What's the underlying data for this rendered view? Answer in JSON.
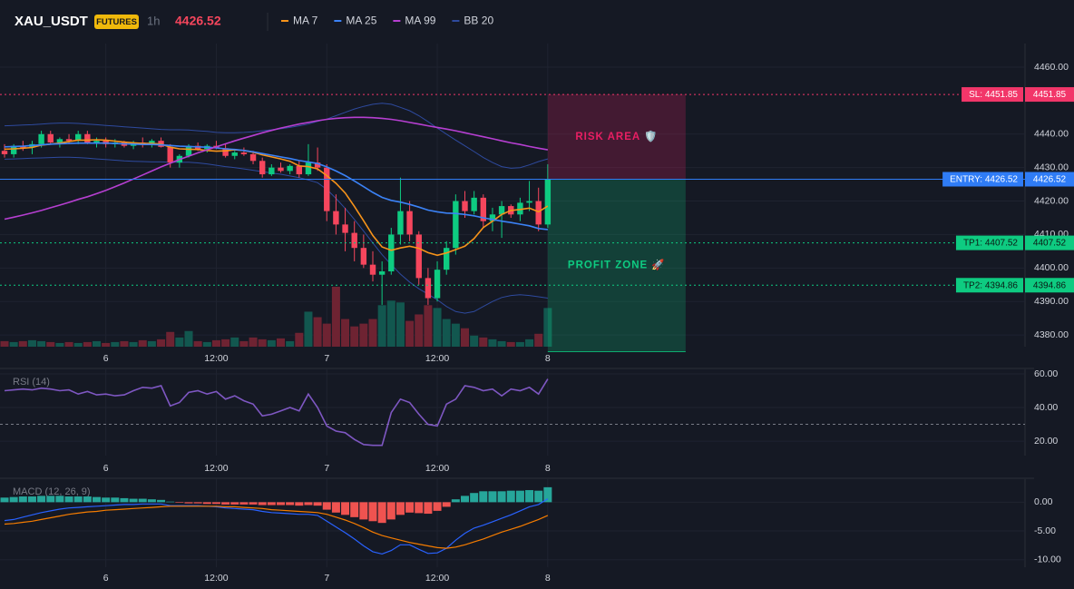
{
  "header": {
    "symbol": "XAU_USDT",
    "badge": "FUTURES",
    "interval": "1h",
    "last_price": 4426.52
  },
  "chart_data": [
    {
      "type": "candlestick",
      "categories": [
        null,
        null,
        null,
        null,
        null,
        null,
        null,
        null,
        null,
        null,
        null,
        "6",
        null,
        null,
        null,
        null,
        null,
        null,
        null,
        null,
        null,
        null,
        null,
        "12:00",
        null,
        null,
        null,
        null,
        null,
        null,
        null,
        null,
        null,
        null,
        null,
        "7",
        null,
        null,
        null,
        null,
        null,
        null,
        null,
        null,
        null,
        null,
        null,
        "12:00",
        null,
        null,
        null,
        null,
        null,
        null,
        null,
        null,
        null,
        null,
        null,
        "8"
      ],
      "open": [
        4435,
        4434,
        4436.5,
        4436,
        4437,
        4440,
        4437.5,
        4438.5,
        4438,
        4440,
        4437.5,
        4438,
        4437,
        4437.5,
        4436.5,
        4437.5,
        4436.8,
        4438,
        4436.2,
        4431.5,
        4433.5,
        4436.5,
        4435.5,
        4436.5,
        4435.8,
        4433.5,
        4434.5,
        4434,
        4432,
        4428,
        4430,
        4429,
        4430.5,
        4428,
        4431.5,
        4430,
        4417,
        4413,
        4410.5,
        4406,
        4401,
        4398,
        4399,
        4410,
        4417,
        4410,
        4397,
        4391,
        4399.5,
        4406,
        4420,
        4417,
        4421,
        4414,
        4416,
        4418.5,
        4416,
        4419.5,
        4420,
        4413
      ],
      "high": [
        4437,
        4437,
        4438,
        4438,
        4441,
        4441,
        4439,
        4440,
        4441,
        4441,
        4439,
        4439,
        4438.5,
        4438,
        4438,
        4439,
        4438.5,
        4439,
        4437,
        4434,
        4437,
        4437.5,
        4437,
        4438,
        4437,
        4435,
        4436,
        4435,
        4433,
        4431,
        4431.5,
        4431,
        4432,
        4437,
        4436,
        4431,
        4422,
        4418,
        4414,
        4410,
        4405,
        4402,
        4412,
        4427,
        4420,
        4411,
        4400,
        4402,
        4408,
        4422,
        4423,
        4423,
        4422,
        4418,
        4420,
        4419,
        4421,
        4426,
        4424,
        4431
      ],
      "low": [
        4433,
        4433,
        4435,
        4434,
        4436,
        4437,
        4436,
        4437,
        4437,
        4437,
        4436,
        4436,
        4436,
        4436,
        4435.5,
        4436,
        4436,
        4436,
        4430,
        4430,
        4433,
        4435,
        4434.5,
        4435.5,
        4433,
        4432.5,
        4433.5,
        4431,
        4427,
        4427.5,
        4428.5,
        4428,
        4427,
        4427.5,
        4429,
        4414,
        4410,
        4405,
        4402,
        4400,
        4396,
        4389,
        4398,
        4407,
        4408,
        4395,
        4389,
        4390,
        4398,
        4404,
        4415,
        4416,
        4412,
        4411,
        4409,
        4415,
        4414,
        4417,
        4411,
        4412
      ],
      "close": [
        4434,
        4436.5,
        4436,
        4437,
        4440,
        4437.5,
        4438.5,
        4438,
        4440,
        4437.5,
        4438,
        4437,
        4437.5,
        4436.5,
        4437.5,
        4436.8,
        4438,
        4436.2,
        4431.5,
        4433.5,
        4436.5,
        4435.5,
        4436.5,
        4435.8,
        4433.5,
        4434.5,
        4434,
        4432,
        4428,
        4430,
        4429,
        4430.5,
        4428,
        4431.5,
        4430,
        4417,
        4413,
        4410.5,
        4406,
        4401,
        4398,
        4399,
        4410,
        4417,
        4410,
        4397,
        4391,
        4399.5,
        4406,
        4420,
        4417,
        4421,
        4414,
        4416,
        4418.5,
        4416,
        4419.5,
        4420,
        4413,
        4426.52
      ],
      "volume": [
        6,
        5,
        6,
        7,
        6,
        5,
        4,
        5,
        4,
        5,
        6,
        4,
        5,
        6,
        5,
        7,
        6,
        8,
        16,
        10,
        17,
        6,
        5,
        7,
        8,
        10,
        6,
        10,
        8,
        7,
        9,
        6,
        15,
        38,
        32,
        25,
        65,
        30,
        22,
        25,
        30,
        45,
        50,
        48,
        28,
        35,
        45,
        42,
        30,
        25,
        20,
        12,
        10,
        8,
        6,
        5,
        5,
        8,
        14,
        42
      ],
      "colors": {
        "up": "#0ecb81",
        "down": "#f6465d",
        "volume_up": "#12574f",
        "volume_down": "#6e2332"
      },
      "series": [
        {
          "name": "MA 7",
          "color": "#f7931a",
          "values": [
            4435.5,
            4435.6,
            4435.8,
            4436,
            4436.7,
            4437,
            4437.3,
            4437.8,
            4438.2,
            4438.2,
            4438.3,
            4438.2,
            4437.9,
            4437.6,
            4437.4,
            4437.2,
            4437.2,
            4437,
            4436.1,
            4435.6,
            4435.5,
            4435.4,
            4435.1,
            4434.9,
            4435,
            4435.3,
            4435.1,
            4434.6,
            4433.8,
            4433.2,
            4432.6,
            4431.9,
            4430.5,
            4430.3,
            4429.6,
            4427.6,
            4425.3,
            4422.4,
            4418.4,
            4414.1,
            4409.7,
            4406.3,
            4405.3,
            4406,
            4406.5,
            4405.9,
            4404.6,
            4403.8,
            4404.5,
            4405.5,
            4406.5,
            4408.8,
            4412.1,
            4414,
            4416,
            4417.2,
            4417.5,
            4417.9,
            4416.8,
            4418.5
          ]
        },
        {
          "name": "MA 25",
          "color": "#3b82f6",
          "values": [
            4436.2,
            4436.3,
            4436.4,
            4436.6,
            4436.8,
            4437,
            4437.1,
            4437.2,
            4437.3,
            4437.3,
            4437.3,
            4437.3,
            4437.2,
            4437.1,
            4437,
            4436.9,
            4436.9,
            4436.8,
            4436.6,
            4436.4,
            4436.3,
            4436.2,
            4436.1,
            4435.9,
            4435.6,
            4435.4,
            4435.1,
            4434.7,
            4434.2,
            4433.7,
            4433.2,
            4432.7,
            4432.1,
            4431.7,
            4431.2,
            4430.2,
            4429,
            4427.6,
            4426,
            4424.3,
            4422.6,
            4421.1,
            4420.2,
            4419.7,
            4419,
            4418.2,
            4417.3,
            4416.8,
            4416.4,
            4416.3,
            4416,
            4415.6,
            4415,
            4414.5,
            4414,
            4413.6,
            4413.1,
            4412.6,
            4411.8,
            4411.5
          ]
        },
        {
          "name": "MA 99",
          "color": "#b63fd1",
          "values": [
            4414.6,
            4415.2,
            4415.8,
            4416.5,
            4417.2,
            4418,
            4418.8,
            4419.6,
            4420.5,
            4421.3,
            4422.2,
            4423.2,
            4424.3,
            4425.4,
            4426.6,
            4427.8,
            4429,
            4430.2,
            4431.3,
            4432.4,
            4433.4,
            4434.4,
            4435.3,
            4436.2,
            4437.1,
            4438,
            4438.8,
            4439.6,
            4440.4,
            4441.1,
            4441.8,
            4442.4,
            4443,
            4443.5,
            4444,
            4444.4,
            4444.7,
            4444.9,
            4445,
            4445,
            4444.9,
            4444.7,
            4444.4,
            4444,
            4443.5,
            4443,
            4442.5,
            4442,
            4441.5,
            4441,
            4440.4,
            4439.8,
            4439.2,
            4438.6,
            4438,
            4437.4,
            4436.9,
            4436.3,
            4435.8,
            4435.3
          ]
        }
      ],
      "bands": {
        "name": "BB 20",
        "color": "#2e4a9e",
        "upper": [
          4442.5,
          4442.6,
          4442.7,
          4442.8,
          4443,
          4443.2,
          4443.3,
          4443.3,
          4443.2,
          4443,
          4442.8,
          4442.6,
          4442.4,
          4442.2,
          4442,
          4441.8,
          4441.6,
          4441.4,
          4441.3,
          4441.3,
          4441.2,
          4441,
          4440.8,
          4440.5,
          4440.4,
          4440.4,
          4440.5,
          4440.7,
          4441,
          4441.3,
          4441.6,
          4442,
          4442.5,
          4443,
          4443.8,
          4444.5,
          4445.5,
          4446.5,
          4447.5,
          4448.3,
          4448.9,
          4449.2,
          4448.9,
          4448,
          4447,
          4445.5,
          4443.7,
          4441.8,
          4440,
          4438.2,
          4436.5,
          4434.8,
          4433,
          4431.5,
          4430.3,
          4429.8,
          4430,
          4430.8,
          4431.8,
          4432.6
        ],
        "lower": [
          4432.5,
          4432.6,
          4432.7,
          4432.8,
          4432.9,
          4433,
          4433.1,
          4433.1,
          4433,
          4432.8,
          4432.6,
          4432.4,
          4432.2,
          4432,
          4431.9,
          4431.8,
          4431.7,
          4431.7,
          4431.6,
          4431.6,
          4431.6,
          4431.4,
          4431.1,
          4430.7,
          4430.3,
          4430,
          4429.6,
          4429.2,
          4428.8,
          4428.4,
          4428,
          4427.5,
          4427,
          4426.3,
          4425.5,
          4423.5,
          4420.8,
          4417.8,
          4414.5,
          4411,
          4407.5,
          4404,
          4401,
          4398.2,
          4395.8,
          4393.8,
          4392.2,
          4390.5,
          4388.5,
          4387,
          4386.5,
          4387,
          4388.5,
          4390,
          4391.2,
          4391.8,
          4392,
          4391.8,
          4391.4,
          4391
        ]
      },
      "ylim": [
        4376.5,
        4467.05
      ],
      "yticks": [
        {
          "value": 4460,
          "label": "4460.00"
        },
        {
          "value": 4440,
          "label": "4440.00"
        },
        {
          "value": 4430,
          "label": "4430.00"
        },
        {
          "value": 4420,
          "label": "4420.00"
        },
        {
          "value": 4410,
          "label": "4410.00"
        },
        {
          "value": 4400,
          "label": "4400.00"
        },
        {
          "value": 4390,
          "label": "4390.00"
        },
        {
          "value": 4380,
          "label": "4380.00"
        }
      ],
      "grid": true,
      "price_lines": [
        {
          "label": "SL: 4451.85",
          "value": 4451.85,
          "color": "#f23669",
          "text_color": "#ffffff",
          "dash": true
        },
        {
          "label": "ENTRY: 4426.52",
          "value": 4426.52,
          "color": "#2f7cf6",
          "text_color": "#ffffff",
          "dash": false
        },
        {
          "label": "TP1: 4407.52",
          "value": 4407.52,
          "color": "#0ecb81",
          "text_color": "#0b1a14",
          "dash": true
        },
        {
          "label": "TP2: 4394.86",
          "value": 4394.86,
          "color": "#0ecb81",
          "text_color": "#0b1a14",
          "dash": true
        }
      ],
      "zones": [
        {
          "label": "RISK AREA 🛡️",
          "from": 4451.85,
          "to": 4426.52,
          "color": "#e91e63"
        },
        {
          "label": "PROFIT ZONE 🚀",
          "from": 4426.52,
          "to": 4375,
          "color": "#0ecb81"
        }
      ]
    },
    {
      "type": "line",
      "title": "RSI (14)",
      "series": [
        {
          "color": "#7e57c2",
          "values": [
            50,
            50.5,
            51,
            50.5,
            51.5,
            51,
            50,
            50.5,
            48,
            49.5,
            47.5,
            48,
            47,
            47.5,
            50,
            52,
            51.5,
            53,
            41,
            43,
            49,
            50,
            48,
            49.5,
            45,
            47,
            44,
            42,
            35,
            36,
            38,
            40,
            38,
            48,
            40,
            29,
            26,
            25,
            21,
            18,
            17.5,
            17.5,
            37,
            45,
            43,
            36,
            30,
            29,
            42,
            45,
            53,
            52,
            50,
            51,
            47,
            51,
            50,
            52,
            48,
            57
          ]
        }
      ],
      "ylim": [
        11.4,
        62.7
      ],
      "yticks": [
        {
          "value": 60,
          "label": "60.00"
        },
        {
          "value": 40,
          "label": "40.00"
        },
        {
          "value": 20,
          "label": "20.00"
        }
      ],
      "levels": [
        30
      ]
    },
    {
      "type": "macd",
      "title": "MACD (12, 26, 9)",
      "histogram": {
        "values": [
          0.8,
          0.9,
          1,
          1,
          1.1,
          1.1,
          1.1,
          1,
          1,
          1,
          0.9,
          0.8,
          0.8,
          0.7,
          0.6,
          0.6,
          0.5,
          0.4,
          0.1,
          -0.1,
          -0.2,
          -0.2,
          -0.3,
          -0.3,
          -0.4,
          -0.4,
          -0.4,
          -0.4,
          -0.5,
          -0.5,
          -0.5,
          -0.5,
          -0.6,
          -0.5,
          -0.6,
          -1.3,
          -1.8,
          -2.2,
          -2.6,
          -3,
          -3.3,
          -3.6,
          -3,
          -2.2,
          -1.8,
          -1.9,
          -2,
          -1.5,
          -0.8,
          0.5,
          1.1,
          1.6,
          1.9,
          1.9,
          1.9,
          2,
          2,
          2.1,
          2,
          2.6
        ],
        "colors": {
          "up": "#26a69a",
          "down": "#ef5350"
        }
      },
      "series": [
        {
          "color": "#2962ff",
          "values": [
            -3.2,
            -3,
            -2.6,
            -2.2,
            -1.8,
            -1.5,
            -1.2,
            -1,
            -0.9,
            -0.8,
            -0.7,
            -0.6,
            -0.5,
            -0.4,
            -0.4,
            -0.3,
            -0.3,
            -0.3,
            -0.6,
            -0.6,
            -0.6,
            -0.6,
            -0.7,
            -0.8,
            -1,
            -1.1,
            -1.2,
            -1.3,
            -1.6,
            -1.8,
            -1.9,
            -2,
            -2.1,
            -2.1,
            -2.3,
            -3.3,
            -4.3,
            -5.3,
            -6.4,
            -7.6,
            -8.6,
            -9,
            -8.4,
            -7.4,
            -7.4,
            -8.2,
            -8.9,
            -8.8,
            -8,
            -6.6,
            -5.4,
            -4.5,
            -4,
            -3.4,
            -2.8,
            -2.2,
            -1.5,
            -0.8,
            -0.4,
            0.6
          ]
        },
        {
          "color": "#f57c00",
          "values": [
            -3.8,
            -3.7,
            -3.5,
            -3.3,
            -3,
            -2.7,
            -2.4,
            -2.1,
            -1.9,
            -1.7,
            -1.6,
            -1.4,
            -1.3,
            -1.2,
            -1.1,
            -1,
            -0.9,
            -0.8,
            -0.7,
            -0.7,
            -0.7,
            -0.7,
            -0.7,
            -0.7,
            -0.8,
            -0.8,
            -0.9,
            -1,
            -1.1,
            -1.3,
            -1.4,
            -1.5,
            -1.6,
            -1.7,
            -1.8,
            -2.1,
            -2.6,
            -3.1,
            -3.7,
            -4.4,
            -5.2,
            -5.8,
            -6.2,
            -6.6,
            -7,
            -7.3,
            -7.6,
            -7.9,
            -8,
            -7.8,
            -7.4,
            -6.9,
            -6.4,
            -5.8,
            -5.2,
            -4.7,
            -4.2,
            -3.6,
            -3,
            -2.3
          ]
        }
      ],
      "ylim": [
        -11.3,
        4
      ],
      "yticks": [
        {
          "value": 0,
          "label": "0.00"
        },
        {
          "value": -5,
          "label": "-5.00"
        },
        {
          "value": -10,
          "label": "-10.00"
        }
      ]
    }
  ]
}
